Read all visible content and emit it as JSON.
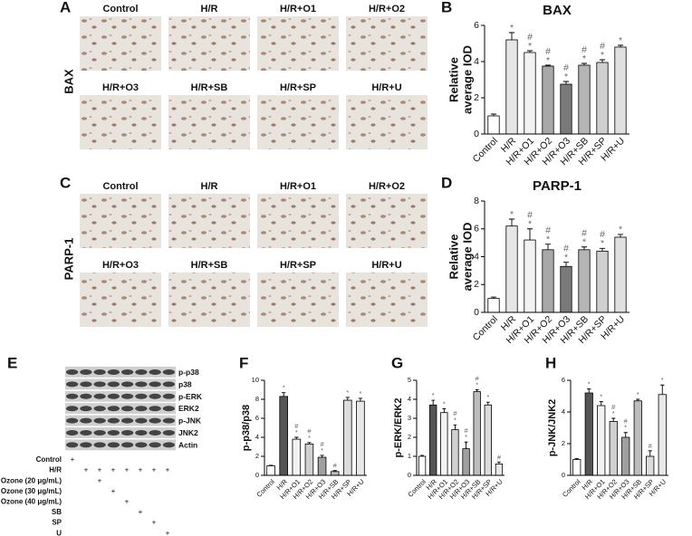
{
  "panel_letters": [
    "A",
    "B",
    "C",
    "D",
    "E",
    "F",
    "G",
    "H"
  ],
  "micrographs": [
    {
      "stain": "BAX",
      "labels": [
        "Control",
        "H/R",
        "H/R+O1",
        "H/R+O2",
        "H/R+O3",
        "H/R+SB",
        "H/R+SP",
        "H/R+U"
      ]
    },
    {
      "stain": "PARP-1",
      "labels": [
        "Control",
        "H/R",
        "H/R+O1",
        "H/R+O2",
        "H/R+O3",
        "H/R+SB",
        "H/R+SP",
        "H/R+U"
      ]
    }
  ],
  "blot": {
    "proteins": [
      "p-p38",
      "p38",
      "p-ERK",
      "ERK2",
      "p-JNK",
      "JNK2",
      "Actin"
    ],
    "treatments": [
      {
        "label": "Control",
        "signs": [
          "+",
          null,
          null,
          null,
          null,
          null,
          null,
          null
        ]
      },
      {
        "label": "H/R",
        "signs": [
          null,
          "+",
          "+",
          "+",
          "+",
          "+",
          "+",
          "+"
        ]
      },
      {
        "label": "Ozone (20 μg/mL)",
        "signs": [
          null,
          null,
          "+",
          null,
          null,
          null,
          null,
          null
        ]
      },
      {
        "label": "Ozone (30 μg/mL)",
        "signs": [
          null,
          null,
          null,
          "+",
          null,
          null,
          null,
          null
        ]
      },
      {
        "label": "Ozone (40 μg/mL)",
        "signs": [
          null,
          null,
          null,
          null,
          "+",
          null,
          null,
          null
        ]
      },
      {
        "label": "SB",
        "signs": [
          null,
          null,
          null,
          null,
          null,
          "+",
          null,
          null
        ]
      },
      {
        "label": "SP",
        "signs": [
          null,
          null,
          null,
          null,
          null,
          null,
          "+",
          null
        ]
      },
      {
        "label": "U",
        "signs": [
          null,
          null,
          null,
          null,
          null,
          null,
          null,
          "+"
        ]
      }
    ]
  },
  "chart_data": [
    {
      "type": "bar",
      "title": "BAX",
      "ylabel": [
        "Relative",
        "average IOD"
      ],
      "categories": [
        "Control",
        "H/R",
        "H/R+O1",
        "H/R+O2",
        "H/R+O3",
        "H/R+SB",
        "H/R+SP",
        "H/R+U"
      ],
      "values": [
        1.0,
        5.2,
        4.5,
        3.75,
        2.75,
        3.8,
        3.95,
        4.8
      ],
      "errors": [
        0.1,
        0.4,
        0.1,
        0.05,
        0.15,
        0.1,
        0.15,
        0.1
      ],
      "colors": [
        "#ffffff",
        "#e6e6e6",
        "#f2f2f2",
        "#a8a8a8",
        "#7a7a7a",
        "#b5b5b5",
        "#cfcfcf",
        "#e0e0e0"
      ],
      "annotations": [
        [],
        [
          "*"
        ],
        [
          "#",
          "*"
        ],
        [
          "#",
          "*"
        ],
        [
          "#",
          "*"
        ],
        [
          "#",
          "*"
        ],
        [
          "#",
          "*"
        ],
        [
          "*"
        ]
      ],
      "ylim": [
        0,
        6
      ],
      "yticks": [
        0,
        2,
        4,
        6
      ]
    },
    {
      "type": "bar",
      "title": "PARP-1",
      "ylabel": [
        "Relative",
        "average IOD"
      ],
      "categories": [
        "Control",
        "H/R",
        "H/R+O1",
        "H/R+O2",
        "H/R+O3",
        "H/R+SB",
        "H/R+SP",
        "H/R+U"
      ],
      "values": [
        1.0,
        6.2,
        5.2,
        4.5,
        3.3,
        4.5,
        4.4,
        5.4
      ],
      "errors": [
        0.1,
        0.5,
        0.8,
        0.4,
        0.3,
        0.2,
        0.2,
        0.2
      ],
      "colors": [
        "#ffffff",
        "#e6e6e6",
        "#f2f2f2",
        "#a8a8a8",
        "#7a7a7a",
        "#b5b5b5",
        "#cfcfcf",
        "#e0e0e0"
      ],
      "annotations": [
        [],
        [
          "*"
        ],
        [
          "#",
          "*"
        ],
        [
          "#",
          "*"
        ],
        [
          "#",
          "*"
        ],
        [
          "#",
          "*"
        ],
        [
          "#",
          "*"
        ],
        [
          "*"
        ]
      ],
      "ylim": [
        0,
        8
      ],
      "yticks": [
        0,
        2,
        4,
        6,
        8
      ]
    },
    {
      "type": "bar",
      "ylabel": [
        "p-p38/p38"
      ],
      "categories": [
        "Control",
        "H/R",
        "H/R+O1",
        "H/R+O2",
        "H/R+O3",
        "H/R+SB",
        "H/R+SP",
        "H/R+U"
      ],
      "values": [
        1.0,
        8.3,
        3.8,
        3.3,
        1.9,
        0.4,
        7.9,
        7.8
      ],
      "errors": [
        0.05,
        0.4,
        0.2,
        0.15,
        0.2,
        0.1,
        0.3,
        0.3
      ],
      "colors": [
        "#ffffff",
        "#555555",
        "#f2f2f2",
        "#d0d0d0",
        "#a0a0a0",
        "#bdbdbd",
        "#dcdcdc",
        "#e8e8e8"
      ],
      "annotations": [
        [],
        [
          "*"
        ],
        [
          "#",
          "*"
        ],
        [
          "#",
          "*"
        ],
        [
          "#",
          "*"
        ],
        [
          "#"
        ],
        [
          "*"
        ],
        [
          "*"
        ]
      ],
      "ylim": [
        0,
        10
      ],
      "yticks": [
        0,
        2,
        4,
        6,
        8,
        10
      ]
    },
    {
      "type": "bar",
      "ylabel": [
        "p-ERK/ERK2"
      ],
      "categories": [
        "Control",
        "H/R",
        "H/R+O1",
        "H/R+O2",
        "H/R+O3",
        "H/R+SB",
        "H/R+SP",
        "H/R+U"
      ],
      "values": [
        1.0,
        3.7,
        3.3,
        2.4,
        1.4,
        4.4,
        3.7,
        0.6
      ],
      "errors": [
        0.05,
        0.25,
        0.2,
        0.25,
        0.35,
        0.1,
        0.15,
        0.1
      ],
      "colors": [
        "#ffffff",
        "#555555",
        "#f2f2f2",
        "#d0d0d0",
        "#a0a0a0",
        "#bdbdbd",
        "#dcdcdc",
        "#e8e8e8"
      ],
      "annotations": [
        [],
        [
          "*"
        ],
        [
          "*"
        ],
        [
          "#",
          "*"
        ],
        [
          "#",
          "*"
        ],
        [
          "#",
          "*"
        ],
        [
          "*"
        ],
        [
          "#"
        ]
      ],
      "ylim": [
        0,
        5
      ],
      "yticks": [
        0,
        1,
        2,
        3,
        4,
        5
      ]
    },
    {
      "type": "bar",
      "ylabel": [
        "p-JNK/JNK2"
      ],
      "categories": [
        "Control",
        "H/R",
        "H/R+O1",
        "H/R+O2",
        "H/R+O3",
        "H/R+SB",
        "H/R+SP",
        "H/R+U"
      ],
      "values": [
        1.0,
        5.2,
        4.4,
        3.4,
        2.4,
        4.7,
        1.2,
        5.1
      ],
      "errors": [
        0.05,
        0.25,
        0.25,
        0.2,
        0.3,
        0.1,
        0.35,
        0.6
      ],
      "colors": [
        "#ffffff",
        "#555555",
        "#f2f2f2",
        "#d0d0d0",
        "#a0a0a0",
        "#bdbdbd",
        "#dcdcdc",
        "#e8e8e8"
      ],
      "annotations": [
        [],
        [
          "*"
        ],
        [
          "*"
        ],
        [
          "#",
          "*"
        ],
        [
          "#",
          "*"
        ],
        [
          "*"
        ],
        [
          "#"
        ],
        [
          "*"
        ]
      ],
      "ylim": [
        0,
        6
      ],
      "yticks": [
        0,
        2,
        4,
        6
      ]
    }
  ]
}
